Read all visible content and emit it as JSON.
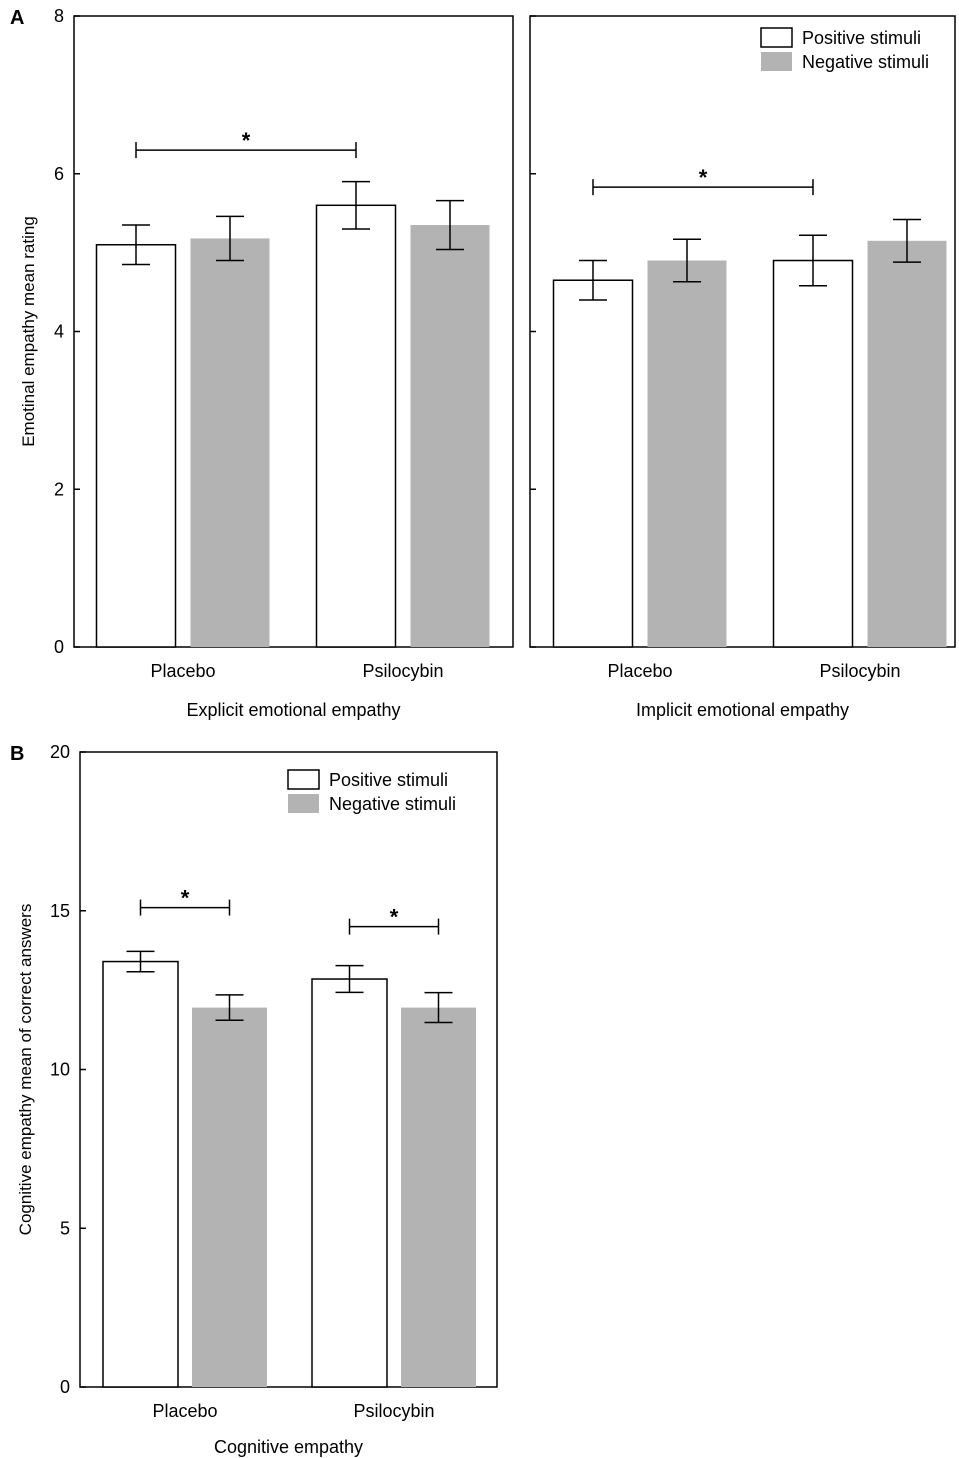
{
  "colors": {
    "positive": "#ffffff",
    "negative": "#b3b3b3",
    "stroke": "#000000"
  },
  "chart_data": [
    {
      "type": "bar",
      "panel": "A",
      "xlabel": "Explicit emotional empathy",
      "ylabel": "Emotinal empathy mean rating",
      "ylim": [
        0,
        8
      ],
      "yticks": [
        0,
        2,
        4,
        6,
        8
      ],
      "show_yticklabels": true,
      "categories": [
        "Placebo",
        "Psilocybin"
      ],
      "legend": false,
      "series": [
        {
          "name": "Positive stimuli",
          "values": [
            5.1,
            5.6
          ],
          "errors": [
            0.25,
            0.3
          ]
        },
        {
          "name": "Negative stimuli",
          "values": [
            5.18,
            5.35
          ],
          "errors": [
            0.28,
            0.31
          ]
        }
      ],
      "significance": [
        {
          "from": [
            0,
            0
          ],
          "to": [
            1,
            0
          ],
          "y": 6.3,
          "label": "*"
        }
      ]
    },
    {
      "type": "bar",
      "xlabel": "Implicit emotional empathy",
      "ylabel": "",
      "ylim": [
        0,
        8
      ],
      "yticks": [
        0,
        2,
        4,
        6,
        8
      ],
      "show_yticklabels": false,
      "categories": [
        "Placebo",
        "Psilocybin"
      ],
      "legend": true,
      "legend_position": "top-right",
      "series": [
        {
          "name": "Positive stimuli",
          "values": [
            4.65,
            4.9
          ],
          "errors": [
            0.25,
            0.32
          ]
        },
        {
          "name": "Negative stimuli",
          "values": [
            4.9,
            5.15
          ],
          "errors": [
            0.27,
            0.27
          ]
        }
      ],
      "significance": [
        {
          "from": [
            0,
            0
          ],
          "to": [
            1,
            0
          ],
          "y": 5.83,
          "label": "*"
        }
      ]
    },
    {
      "type": "bar",
      "panel": "B",
      "xlabel": "Cognitive empathy",
      "ylabel": "Cognitive empathy mean of correct answers",
      "ylim": [
        0,
        20
      ],
      "yticks": [
        0,
        5,
        10,
        15,
        20
      ],
      "show_yticklabels": true,
      "categories": [
        "Placebo",
        "Psilocybin"
      ],
      "legend": true,
      "legend_position": "top-right",
      "series": [
        {
          "name": "Positive stimuli",
          "values": [
            13.4,
            12.85
          ],
          "errors": [
            0.32,
            0.42
          ]
        },
        {
          "name": "Negative stimuli",
          "values": [
            11.95,
            11.95
          ],
          "errors": [
            0.4,
            0.47
          ]
        }
      ],
      "significance": [
        {
          "from": [
            0,
            0
          ],
          "to": [
            0,
            1
          ],
          "y": 15.1,
          "label": "*"
        },
        {
          "from": [
            1,
            0
          ],
          "to": [
            1,
            1
          ],
          "y": 14.5,
          "label": "*"
        }
      ]
    }
  ]
}
